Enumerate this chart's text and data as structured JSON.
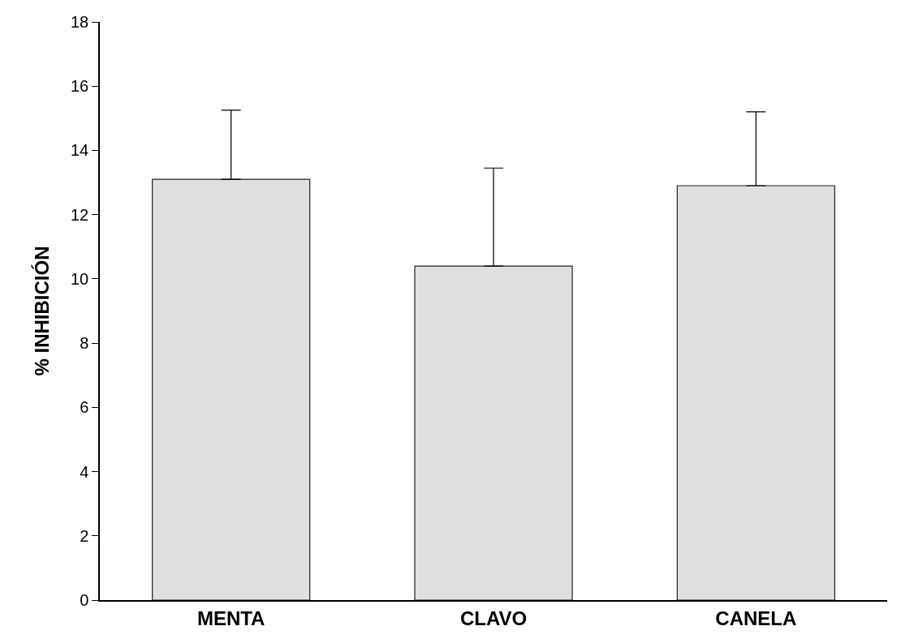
{
  "chart_data": {
    "type": "bar",
    "ylabel": "% INHIBICIÓN",
    "categories": [
      "MENTA",
      "CLAVO",
      "CANELA"
    ],
    "values": [
      13.1,
      10.4,
      12.9
    ],
    "errors": [
      [
        13.1,
        15.25
      ],
      [
        10.4,
        13.45
      ],
      [
        12.9,
        15.2
      ]
    ],
    "colors": [
      "#e0e0e0",
      "#e0e0e0",
      "#e0e0e0"
    ],
    "ylim": [
      0,
      18
    ],
    "yticks": [
      0,
      2,
      4,
      6,
      8,
      10,
      12,
      14,
      16,
      18
    ]
  }
}
